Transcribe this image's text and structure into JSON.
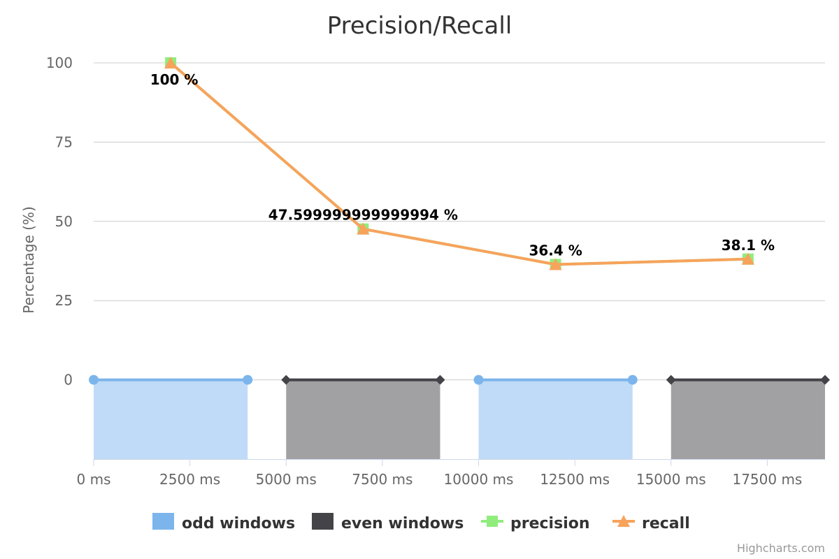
{
  "chart_data": {
    "type": "line",
    "title": "Precision/Recall",
    "ylabel": "Percentage (%)",
    "xlabel": "",
    "xlim": [
      0,
      19000
    ],
    "ylim": [
      -25,
      100
    ],
    "x_ticks": [
      0,
      2500,
      5000,
      7500,
      10000,
      12500,
      15000,
      17500
    ],
    "x_tick_suffix": " ms",
    "y_ticks": [
      0,
      25,
      50,
      75,
      100
    ],
    "grid": true,
    "legend_position": "bottom",
    "windows": [
      {
        "series": "odd windows",
        "x0": 0,
        "x1": 4000
      },
      {
        "series": "even windows",
        "x0": 5000,
        "x1": 9000
      },
      {
        "series": "odd windows",
        "x0": 10000,
        "x1": 14000
      },
      {
        "series": "even windows",
        "x0": 15000,
        "x1": 19000
      }
    ],
    "series": [
      {
        "name": "odd windows",
        "type": "area",
        "color": "#7cb5ec",
        "fill": "#bfdbf7",
        "segments": [
          [
            [
              0,
              0
            ],
            [
              4000,
              0
            ]
          ],
          [
            [
              10000,
              0
            ],
            [
              14000,
              0
            ]
          ]
        ]
      },
      {
        "name": "even windows",
        "type": "area",
        "color": "#434348",
        "fill": "#a1a1a3",
        "segments": [
          [
            [
              5000,
              0
            ],
            [
              9000,
              0
            ]
          ],
          [
            [
              15000,
              0
            ],
            [
              19000,
              0
            ]
          ]
        ]
      },
      {
        "name": "precision",
        "type": "line",
        "color": "#90ed7d",
        "x": [
          2000,
          7000,
          12000,
          17000
        ],
        "values": [
          100,
          47.599999999999994,
          36.4,
          38.1
        ]
      },
      {
        "name": "recall",
        "type": "line",
        "color": "#f7a35c",
        "x": [
          2000,
          7000,
          12000,
          17000
        ],
        "values": [
          100,
          47.599999999999994,
          36.4,
          38.1
        ]
      }
    ],
    "data_labels": [
      "100 %",
      "47.599999999999994 %",
      "36.4 %",
      "38.1 %"
    ],
    "credits": "Highcharts.com"
  }
}
